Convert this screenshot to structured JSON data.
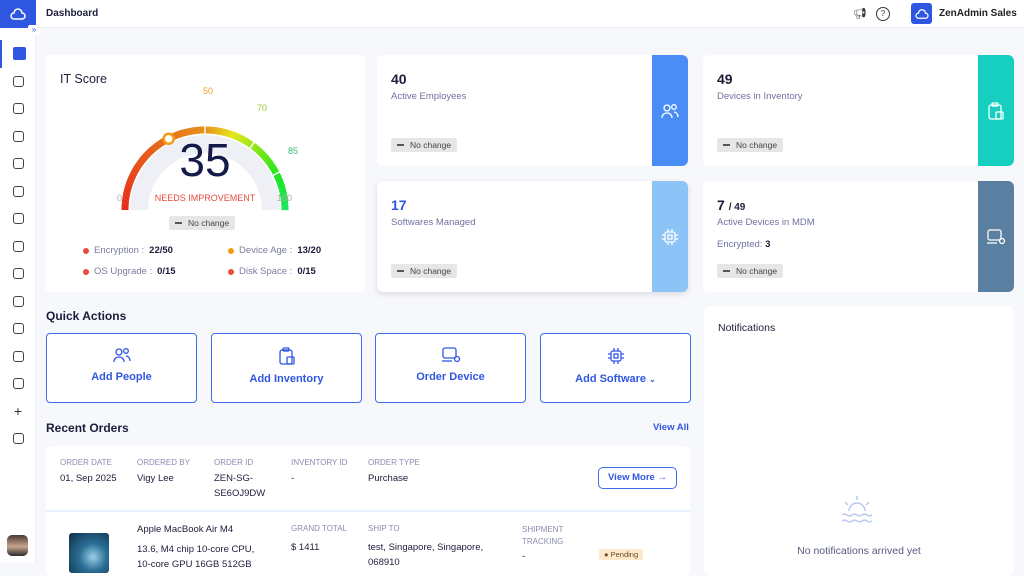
{
  "header": {
    "title": "Dashboard",
    "org_name": "ZenAdmin Sales",
    "icons": [
      "megaphone-icon",
      "help-icon"
    ]
  },
  "sidebar": {
    "items": [
      "dashboard",
      "people",
      "inventory",
      "devices",
      "apps",
      "network",
      "cloud",
      "integrations",
      "workflows",
      "reports",
      "billing",
      "partners",
      "support",
      "add",
      "settings"
    ],
    "active": "dashboard"
  },
  "it_score": {
    "title": "IT Score",
    "score": 35,
    "status": "NEEDS IMPROVEMENT",
    "min": "0",
    "max": "100",
    "ticks": [
      "50",
      "70",
      "85"
    ],
    "change": "No change",
    "metrics": [
      {
        "label": "Encryption :",
        "value": "22/50",
        "color": "#e74c3c"
      },
      {
        "label": "Device Age :",
        "value": "13/20",
        "color": "#f39c12"
      },
      {
        "label": "OS Upgrade :",
        "value": "0/15",
        "color": "#e74c3c"
      },
      {
        "label": "Disk Space :",
        "value": "0/15",
        "color": "#e74c3c"
      }
    ]
  },
  "stats": [
    {
      "value": "40",
      "label": "Active Employees",
      "change": "No change",
      "color": "#4a8df5",
      "icon": "people-icon"
    },
    {
      "value": "49",
      "label": "Devices in Inventory",
      "change": "No change",
      "color": "#16cfc0",
      "icon": "clipboard-icon"
    },
    {
      "value": "17",
      "label": "Softwares Managed",
      "change": "No change",
      "color": "#8cc4f7",
      "icon": "chip-icon"
    },
    {
      "value": "7",
      "total": "/ 49",
      "label": "Active Devices in MDM",
      "extra_label": "Encrypted:",
      "extra_value": "3",
      "change": "No change",
      "color": "#5b7fa0",
      "icon": "device-settings-icon"
    }
  ],
  "quick_actions": {
    "title": "Quick Actions",
    "items": [
      "Add People",
      "Add Inventory",
      "Order Device",
      "Add Software"
    ]
  },
  "recent_orders": {
    "title": "Recent Orders",
    "view_all": "View All",
    "columns": [
      "ORDER DATE",
      "ORDERED BY",
      "ORDER ID",
      "INVENTORY ID",
      "ORDER TYPE"
    ],
    "order": {
      "date": "01, Sep 2025",
      "by": "Vigy Lee",
      "id_1": "ZEN-SG-",
      "id_2": "SE6OJ9DW",
      "inventory_id": "-",
      "type": "Purchase",
      "view_more": "View More →"
    },
    "item": {
      "name": "Apple MacBook Air M4",
      "desc_1": "13.6, M4 chip 10-core CPU,",
      "desc_2": "10-core GPU 16GB 512GB",
      "total_label": "GRAND TOTAL",
      "total": "$ 1411",
      "ship_label": "SHIP TO",
      "ship_1": "test, Singapore, Singapore,",
      "ship_2": "068910",
      "tracking_label_1": "SHIPMENT",
      "tracking_label_2": "TRACKING",
      "tracking": "-",
      "status": "Pending"
    }
  },
  "notifications": {
    "title": "Notifications",
    "empty": "No notifications arrived yet"
  }
}
